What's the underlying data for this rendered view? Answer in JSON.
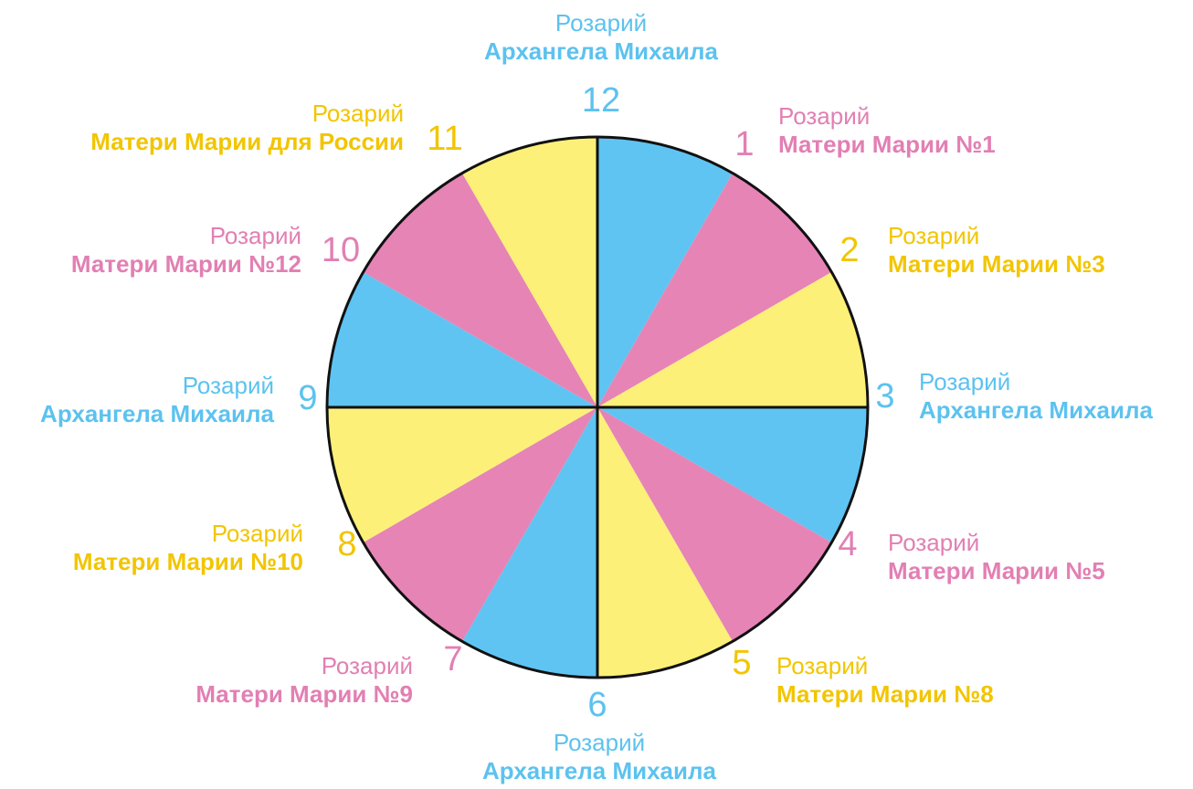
{
  "colors": {
    "blue": "#5fc4f2",
    "pink": "#e684b6",
    "yellow": "#fdf078",
    "blue_text": "#5cc2ef",
    "pink_text": "#e27fb3",
    "yellow_text": "#f2c500",
    "outline": "#111111"
  },
  "segments": [
    {
      "hour": "12",
      "color": "blue",
      "line1": "Розарий",
      "line2": "Архангела Михаила"
    },
    {
      "hour": "1",
      "color": "pink",
      "line1": "Розарий",
      "line2": "Матери Марии №1"
    },
    {
      "hour": "2",
      "color": "yellow",
      "line1": "Розарий",
      "line2": "Матери Марии №3"
    },
    {
      "hour": "3",
      "color": "blue",
      "line1": "Розарий",
      "line2": "Архангела Михаила"
    },
    {
      "hour": "4",
      "color": "pink",
      "line1": "Розарий",
      "line2": "Матери Марии №5"
    },
    {
      "hour": "5",
      "color": "yellow",
      "line1": "Розарий",
      "line2": "Матери Марии №8"
    },
    {
      "hour": "6",
      "color": "blue",
      "line1": "Розарий",
      "line2": "Архангела Михаила"
    },
    {
      "hour": "7",
      "color": "pink",
      "line1": "Розарий",
      "line2": "Матери Марии №9"
    },
    {
      "hour": "8",
      "color": "yellow",
      "line1": "Розарий",
      "line2": "Матери Марии №10"
    },
    {
      "hour": "9",
      "color": "blue",
      "line1": "Розарий",
      "line2": "Архангела Михаила"
    },
    {
      "hour": "10",
      "color": "pink",
      "line1": "Розарий",
      "line2": "Матери Марии №12"
    },
    {
      "hour": "11",
      "color": "yellow",
      "line1": "Розарий",
      "line2": "Матери Марии для России"
    }
  ]
}
